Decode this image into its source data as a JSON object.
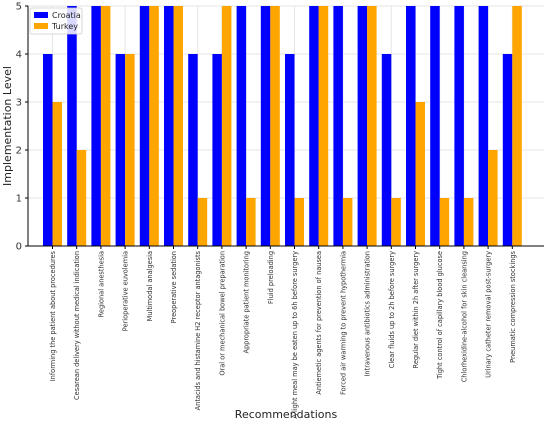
{
  "chart_data": {
    "type": "bar",
    "title": "",
    "xlabel": "Recommendations",
    "ylabel": "Implementation Level",
    "ylim": [
      0,
      5
    ],
    "yticks": [
      0,
      1,
      2,
      3,
      4,
      5
    ],
    "grid": true,
    "legend_position": "top-left",
    "categories": [
      "Informing the patient about procedures",
      "Cesarean delivery without medical indication",
      "Regional anesthesia",
      "Perioperative euvolemia",
      "Multimodal analgesia",
      "Preoperative sedation",
      "Antacids and histamine H2 receptor antagonists",
      "Oral or mechanical bowel preparation",
      "Appropriate patient monitoring",
      "Fluid preloading",
      "A light meal may be eaten up to 6h before surgery",
      "Antiemetic agents for prevention of nausea",
      "Forced air warming to prevent hypothermia",
      "Intravenous antibiotics administration",
      "Clear fluids up to 2h before surgery",
      "Regular diet within 2h after surgery",
      "Tight control of capillary blood glucose",
      "Chlorhexidine-alcohol for skin cleansing",
      "Urinary catheter removal post-surgery",
      "Pneumatic compression stockings"
    ],
    "series": [
      {
        "name": "Croatia",
        "color": "#0000ff",
        "values": [
          4,
          5,
          5,
          4,
          5,
          5,
          4,
          4,
          5,
          5,
          4,
          5,
          5,
          5,
          4,
          5,
          5,
          5,
          5,
          4
        ]
      },
      {
        "name": "Turkey",
        "color": "#ffa500",
        "values": [
          3,
          2,
          5,
          4,
          5,
          5,
          1,
          5,
          1,
          5,
          1,
          5,
          1,
          5,
          1,
          3,
          1,
          1,
          2,
          5
        ]
      }
    ]
  }
}
